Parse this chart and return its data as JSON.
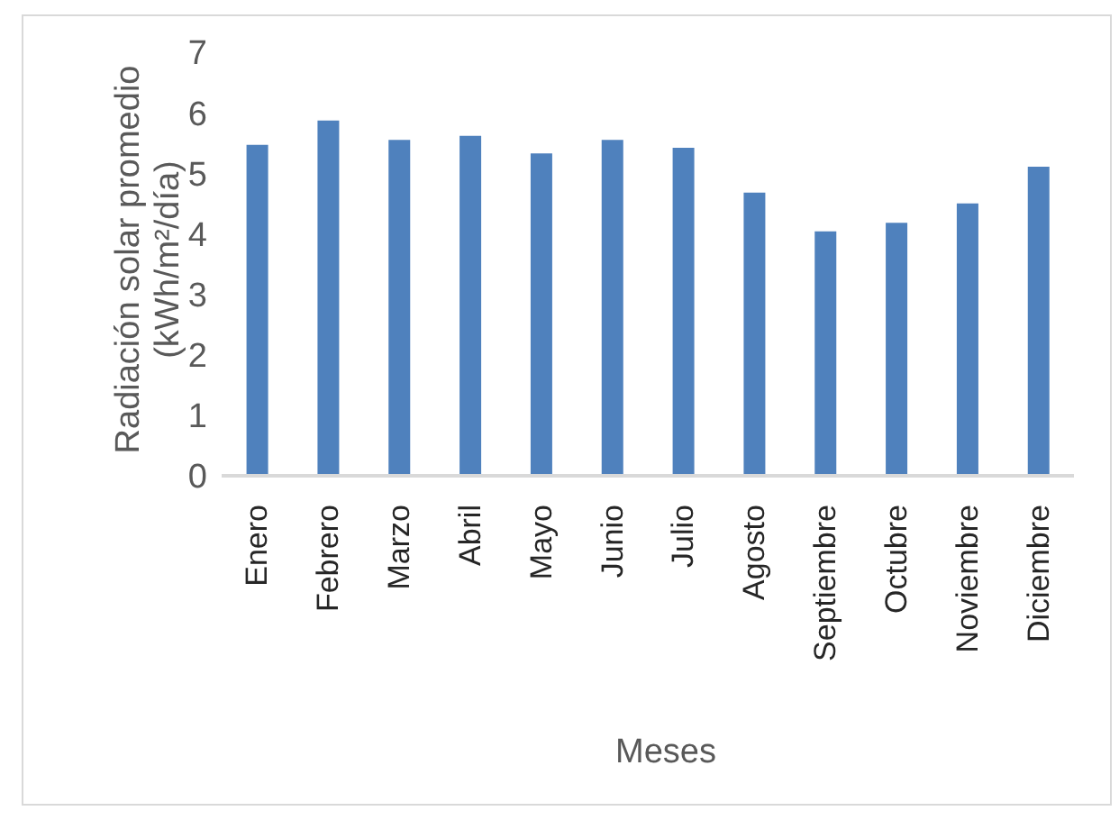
{
  "chart_data": {
    "type": "bar",
    "xlabel": "Meses",
    "ylabel": "Radiación solar promedio\n(kWh/m²/día)",
    "categories": [
      "Enero",
      "Febrero",
      "Marzo",
      "Abril",
      "Mayo",
      "Junio",
      "Julio",
      "Agosto",
      "Septiembre",
      "Octubre",
      "Noviembre",
      "Diciembre"
    ],
    "values": [
      5.47,
      5.87,
      5.55,
      5.62,
      5.33,
      5.55,
      5.42,
      4.68,
      4.04,
      4.18,
      4.5,
      5.11
    ],
    "color": "#4f81bd",
    "ylim": [
      0,
      7
    ],
    "yticks": [
      0,
      1,
      2,
      3,
      4,
      5,
      6,
      7
    ],
    "grid": false,
    "legend": false
  }
}
